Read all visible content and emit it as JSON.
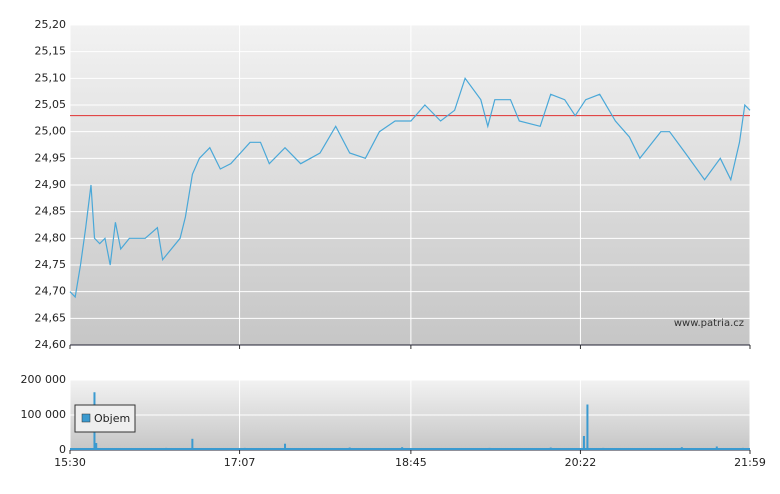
{
  "chart_data": [
    {
      "type": "line",
      "x": [
        "15:30",
        "15:33",
        "15:36",
        "15:39",
        "15:42",
        "15:44",
        "15:47",
        "15:50",
        "15:53",
        "15:56",
        "15:59",
        "16:04",
        "16:13",
        "16:20",
        "16:23",
        "16:33",
        "16:36",
        "16:40",
        "16:44",
        "16:50",
        "16:56",
        "17:02",
        "17:13",
        "17:19",
        "17:24",
        "17:33",
        "17:42",
        "17:53",
        "18:02",
        "18:10",
        "18:19",
        "18:27",
        "18:36",
        "18:45",
        "18:53",
        "19:02",
        "19:10",
        "19:16",
        "19:25",
        "19:29",
        "19:33",
        "19:42",
        "19:47",
        "19:59",
        "20:05",
        "20:13",
        "20:19",
        "20:25",
        "20:33",
        "20:42",
        "20:50",
        "20:56",
        "21:08",
        "21:13",
        "21:22",
        "21:33",
        "21:42",
        "21:48",
        "21:53",
        "21:56",
        "21:59"
      ],
      "values": [
        24.7,
        24.69,
        24.75,
        24.82,
        24.9,
        24.8,
        24.79,
        24.8,
        24.75,
        24.83,
        24.78,
        24.8,
        24.8,
        24.82,
        24.76,
        24.8,
        24.84,
        24.92,
        24.95,
        24.97,
        24.93,
        24.94,
        24.98,
        24.98,
        24.94,
        24.97,
        24.94,
        24.96,
        25.01,
        24.96,
        24.95,
        25.0,
        25.02,
        25.02,
        25.05,
        25.02,
        25.04,
        25.1,
        25.06,
        25.01,
        25.06,
        25.06,
        25.02,
        25.01,
        25.07,
        25.06,
        25.03,
        25.06,
        25.07,
        25.02,
        24.99,
        24.95,
        25.0,
        25.0,
        24.96,
        24.91,
        24.95,
        24.91,
        24.98,
        25.05,
        25.04
      ],
      "color": "#4aa8d8",
      "reference_line": 25.03,
      "reference_color": "#e03030",
      "xlim": [
        "15:30",
        "21:59"
      ],
      "ylim": [
        24.6,
        25.2
      ],
      "yticks": [
        {
          "value": 24.6,
          "label": "24,60"
        },
        {
          "value": 24.65,
          "label": "24,65"
        },
        {
          "value": 24.7,
          "label": "24,70"
        },
        {
          "value": 24.75,
          "label": "24,75"
        },
        {
          "value": 24.8,
          "label": "24,80"
        },
        {
          "value": 24.85,
          "label": "24,85"
        },
        {
          "value": 24.9,
          "label": "24,90"
        },
        {
          "value": 24.95,
          "label": "24,95"
        },
        {
          "value": 25.0,
          "label": "25,00"
        },
        {
          "value": 25.05,
          "label": "25,05"
        },
        {
          "value": 25.1,
          "label": "25,10"
        },
        {
          "value": 25.15,
          "label": "25,15"
        },
        {
          "value": 25.2,
          "label": "25,20"
        }
      ],
      "xticks": [
        "15:30",
        "17:07",
        "18:45",
        "20:22",
        "21:59"
      ],
      "watermark": "www.patria.cz",
      "grid": true
    },
    {
      "type": "bar",
      "x": [
        "15:32",
        "15:40",
        "15:44",
        "15:45",
        "15:55",
        "16:10",
        "16:25",
        "16:40",
        "16:50",
        "17:10",
        "17:33",
        "17:50",
        "18:10",
        "18:40",
        "19:00",
        "19:30",
        "19:50",
        "20:05",
        "20:24",
        "20:26",
        "20:35",
        "21:00",
        "21:20",
        "21:40",
        "21:55"
      ],
      "series": [
        {
          "name": "Objem",
          "color": "#3a9ad0",
          "values": [
            3000,
            4000,
            165000,
            20000,
            5000,
            4000,
            6000,
            32000,
            5000,
            6000,
            18000,
            5000,
            7000,
            8000,
            5000,
            6000,
            5000,
            7000,
            40000,
            130000,
            6000,
            5000,
            8000,
            10000,
            6000
          ]
        }
      ],
      "xlim": [
        "15:30",
        "21:59"
      ],
      "ylim": [
        0,
        200000
      ],
      "yticks": [
        0,
        {
          "value": 100000,
          "label": "100 000"
        },
        {
          "value": 200000,
          "label": "200 000"
        }
      ],
      "xticks": [
        "15:30",
        "17:07",
        "18:45",
        "20:22",
        "21:59"
      ],
      "grid": true
    }
  ]
}
